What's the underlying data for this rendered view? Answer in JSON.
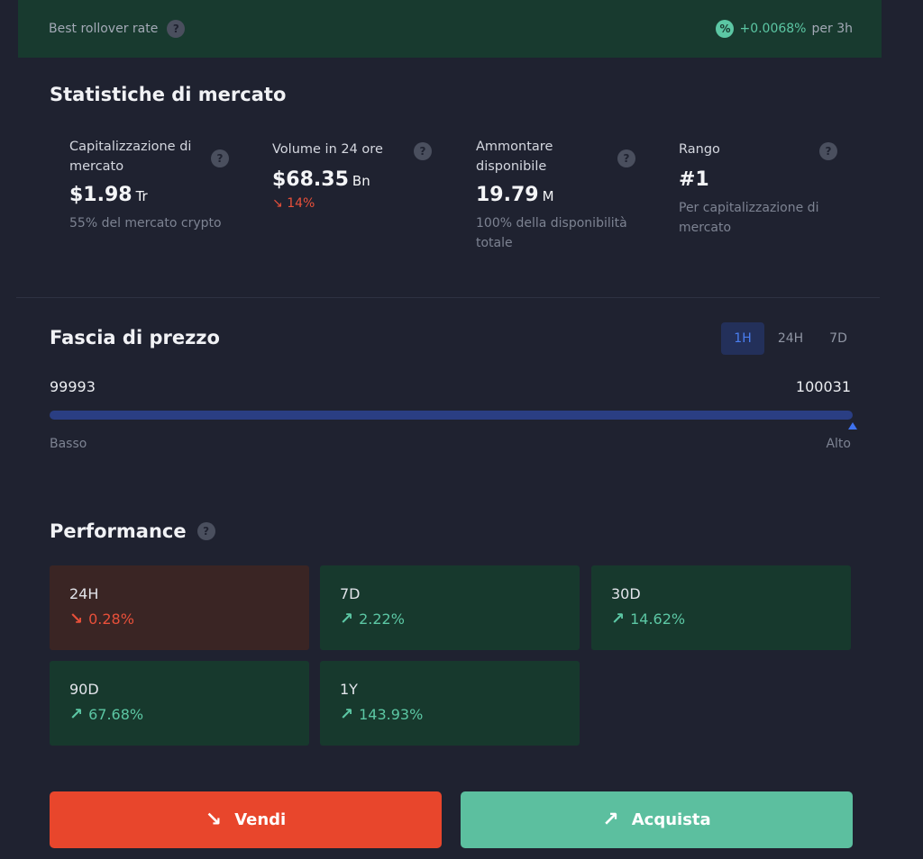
{
  "rollover": {
    "label": "Best rollover rate",
    "rate": "+0.0068%",
    "unit": "per 3h"
  },
  "stats": {
    "title": "Statistiche di mercato",
    "market_cap": {
      "name": "Capitalizzazione di mercato",
      "value": "$1.98",
      "unit": "Tr",
      "sub": "55% del mercato crypto"
    },
    "volume": {
      "name": "Volume in 24 ore",
      "value": "$68.35",
      "unit": "Bn",
      "change": "14%"
    },
    "supply": {
      "name": "Ammontare disponibile",
      "value": "19.79",
      "unit": "M",
      "sub": "100% della disponibilità totale"
    },
    "rank": {
      "name": "Rango",
      "value": "#1",
      "sub": "Per capitalizzazione di mercato"
    }
  },
  "price_range": {
    "title": "Fascia di prezzo",
    "tabs": [
      "1H",
      "24H",
      "7D"
    ],
    "active_tab": "1H",
    "low": "99993",
    "high": "100031",
    "low_label": "Basso",
    "high_label": "Alto",
    "current_position": 1.0
  },
  "performance": {
    "title": "Performance",
    "items": [
      {
        "period": "24H",
        "change": "0.28%",
        "direction": "down"
      },
      {
        "period": "7D",
        "change": "2.22%",
        "direction": "up"
      },
      {
        "period": "30D",
        "change": "14.62%",
        "direction": "up"
      },
      {
        "period": "90D",
        "change": "67.68%",
        "direction": "up"
      },
      {
        "period": "1Y",
        "change": "143.93%",
        "direction": "up"
      }
    ]
  },
  "actions": {
    "sell": "Vendi",
    "buy": "Acquista"
  },
  "colors": {
    "up": "#5cc7a4",
    "down": "#e8503a",
    "accent": "#3f72ee",
    "background": "#1f2230"
  }
}
